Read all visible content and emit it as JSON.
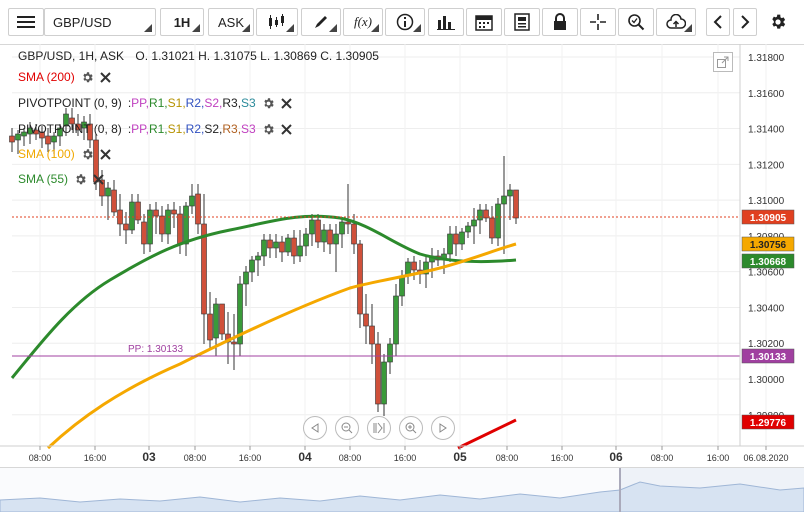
{
  "toolbar": {
    "symbol": "GBP/USD",
    "timeframe": "1H",
    "price_type": "ASK"
  },
  "chart": {
    "title": "GBP/USD, 1H, ASK",
    "ohlc": "O. 1.31021  H. 1.31075  L. 1.30869  C. 1.30905",
    "indicators": [
      {
        "label": "SMA (200)",
        "color": "#e00000"
      },
      {
        "label": "PIVOTPOINT (0, 9)",
        "parts": [
          [
            "PP,",
            "#c040c0"
          ],
          [
            "R1,",
            "#2c8a2c"
          ],
          [
            "S1,",
            "#b59200"
          ],
          [
            "R2,",
            "#3050c0"
          ],
          [
            "S2,",
            "#c040c0"
          ],
          [
            "R3,",
            "#222222"
          ],
          [
            "S3",
            "#2a8a9a"
          ]
        ]
      },
      {
        "label": "PIVOTPOINT (0, 8)",
        "parts": [
          [
            "PP,",
            "#c040c0"
          ],
          [
            "R1,",
            "#2c8a2c"
          ],
          [
            "S1,",
            "#b59200"
          ],
          [
            "R2,",
            "#3050c0"
          ],
          [
            "S2,",
            "#222222"
          ],
          [
            "R3,",
            "#b06020"
          ],
          [
            "S3",
            "#c040c0"
          ]
        ]
      },
      {
        "label": "SMA (100)",
        "color": "#f0a800"
      },
      {
        "label": "SMA (55)",
        "color": "#2c8a2c"
      }
    ],
    "pp_label": "PP: 1.30133",
    "price_levels": [
      "1.31800",
      "1.31600",
      "1.31400",
      "1.31200",
      "1.31000",
      "1.30800",
      "1.30600",
      "1.30400",
      "1.30200",
      "1.30000",
      "1.29800"
    ],
    "price_labels": {
      "current": "1.30905",
      "sma100": "1.30756",
      "sma55": "1.30668",
      "pp": "1.30133",
      "sma200": "1.29776"
    },
    "time_labels": [
      [
        "08:00",
        false
      ],
      [
        "16:00",
        false
      ],
      [
        "03",
        true
      ],
      [
        "08:00",
        false
      ],
      [
        "16:00",
        false
      ],
      [
        "04",
        true
      ],
      [
        "08:00",
        false
      ],
      [
        "16:00",
        false
      ],
      [
        "05",
        true
      ],
      [
        "08:00",
        false
      ],
      [
        "16:00",
        false
      ],
      [
        "06",
        true
      ],
      [
        "08:00",
        false
      ],
      [
        "16:00",
        false
      ],
      [
        "06.08.2020",
        false
      ]
    ],
    "colors": {
      "bull": "#3a9a3a",
      "bear": "#d0503a",
      "sma55": "#2c8a2c",
      "sma100": "#f5a800",
      "sma200": "#e00000",
      "pp": "#a040a0",
      "current": "#e04020"
    }
  }
}
